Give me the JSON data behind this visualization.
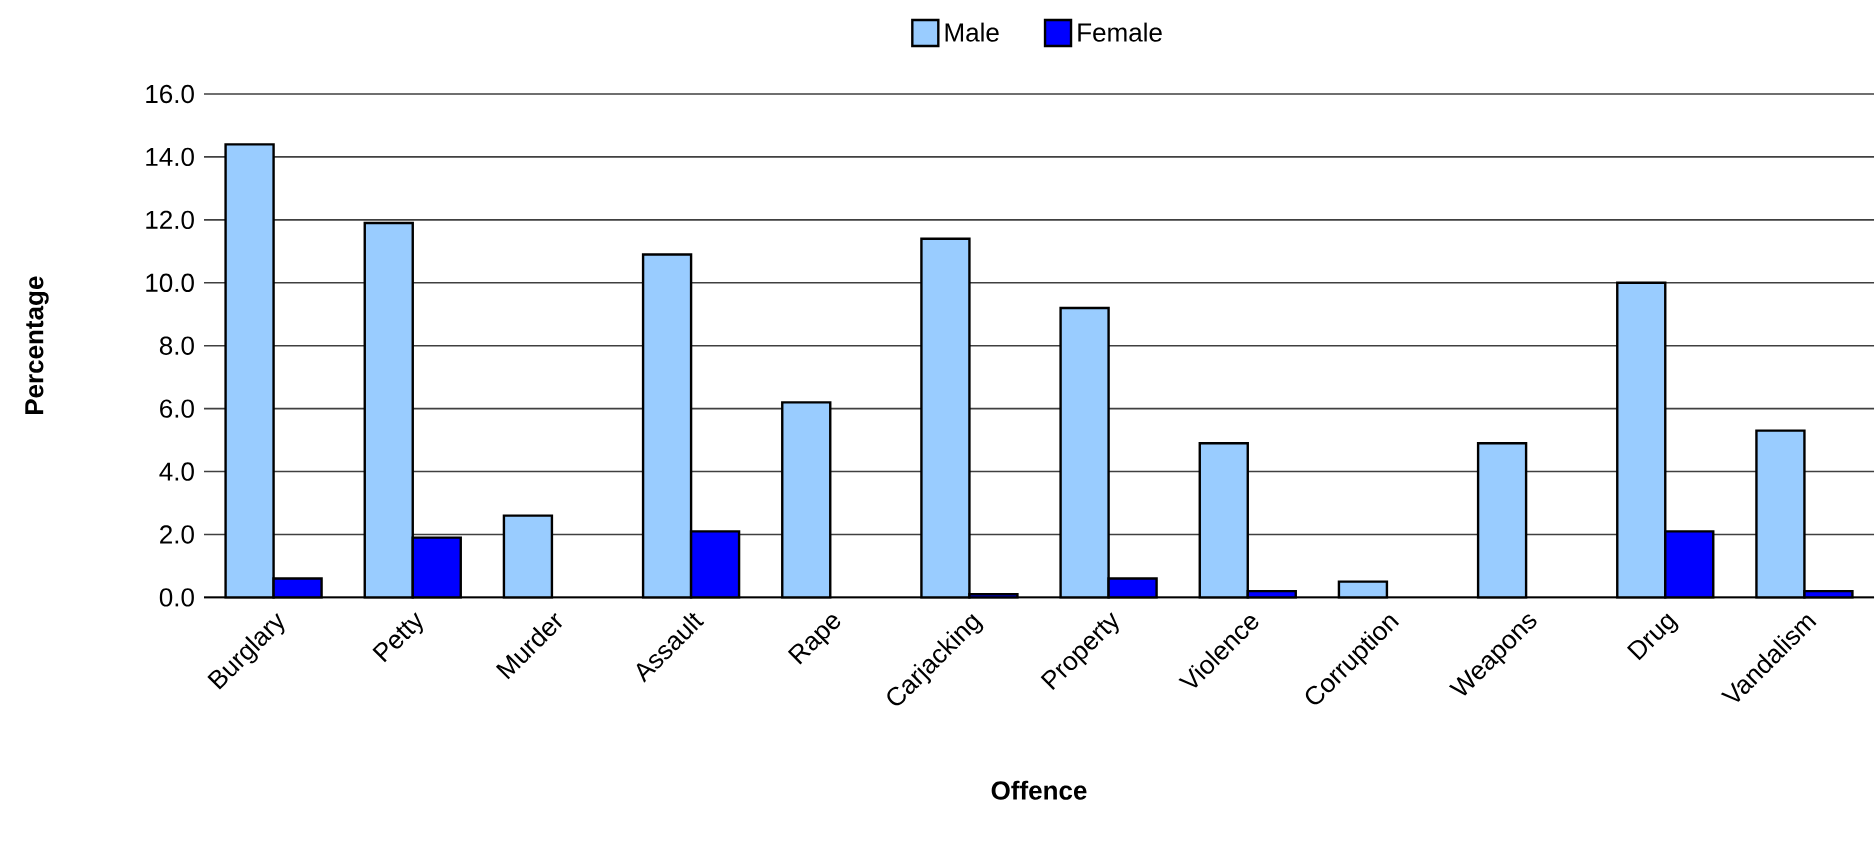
{
  "chart_data": {
    "type": "bar",
    "xlabel": "Offence",
    "ylabel": "Percentage",
    "categories": [
      "Burglary",
      "Petty",
      "Murder",
      "Assault",
      "Rape",
      "Carjacking",
      "Property",
      "Violence",
      "Corruption",
      "Weapons",
      "Drug",
      "Vandalism"
    ],
    "series": [
      {
        "name": "Male",
        "color": "#99ccff",
        "values": [
          14.4,
          11.9,
          2.6,
          10.9,
          6.2,
          11.4,
          9.2,
          4.9,
          0.5,
          4.9,
          10.0,
          5.3
        ]
      },
      {
        "name": "Female",
        "color": "#0000ff",
        "values": [
          0.6,
          1.9,
          null,
          2.1,
          null,
          0.1,
          0.6,
          0.2,
          null,
          null,
          2.1,
          0.2
        ]
      }
    ],
    "ylim": [
      0,
      16
    ],
    "yticks": [
      {
        "value": 0,
        "label": "0.0"
      },
      {
        "value": 2,
        "label": "2.0"
      },
      {
        "value": 4,
        "label": "4.0"
      },
      {
        "value": 6,
        "label": "6.0"
      },
      {
        "value": 8,
        "label": "8.0"
      },
      {
        "value": 10,
        "label": "10.0"
      },
      {
        "value": 12,
        "label": "12.0"
      },
      {
        "value": 14,
        "label": "14.0"
      },
      {
        "value": 16,
        "label": "16.0"
      }
    ],
    "grid": "y",
    "legend": "top"
  }
}
